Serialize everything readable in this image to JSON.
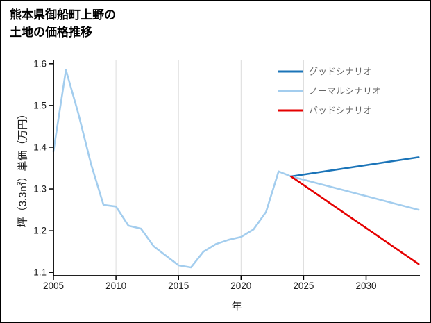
{
  "page": {
    "background": "#ffffff",
    "frame_color": "#000000"
  },
  "title": {
    "line1": "熊本県御船町上野の",
    "line2": "土地の価格推移"
  },
  "chart_data": {
    "type": "line",
    "title": "熊本県御船町上野の土地の価格推移",
    "xlabel": "年",
    "ylabel": "坪（3.3㎡）単価（万円）",
    "xlim": [
      2005,
      2034.3
    ],
    "ylim": [
      1.092,
      1.608
    ],
    "x_ticks": [
      {
        "value": 2005,
        "label": "2005"
      },
      {
        "value": 2010,
        "label": "2010"
      },
      {
        "value": 2015,
        "label": "2015"
      },
      {
        "value": 2020,
        "label": "2020"
      },
      {
        "value": 2025,
        "label": "2025"
      },
      {
        "value": 2030,
        "label": "2030"
      }
    ],
    "y_ticks": [
      {
        "value": 1.1,
        "label": "1.1"
      },
      {
        "value": 1.2,
        "label": "1.2"
      },
      {
        "value": 1.3,
        "label": "1.3"
      },
      {
        "value": 1.4,
        "label": "1.4"
      },
      {
        "value": 1.5,
        "label": "1.5"
      },
      {
        "value": 1.6,
        "label": "1.6"
      }
    ],
    "grid": "vertical-only",
    "legend_position": "top-right",
    "legend": [
      {
        "id": "good",
        "label": "グッドシナリオ",
        "color": "#1b74b8"
      },
      {
        "id": "normal",
        "label": "ノーマルシナリオ",
        "color": "#a3cdee"
      },
      {
        "id": "bad",
        "label": "バッドシナリオ",
        "color": "#e50000"
      }
    ],
    "series": [
      {
        "id": "history",
        "color": "#a3cdee",
        "x": [
          2005,
          2006,
          2007,
          2008,
          2009,
          2010,
          2011,
          2012,
          2013,
          2014,
          2015,
          2016,
          2017,
          2018,
          2019,
          2020,
          2021,
          2022,
          2023,
          2024
        ],
        "values": [
          1.39,
          1.585,
          1.48,
          1.36,
          1.262,
          1.258,
          1.212,
          1.205,
          1.163,
          1.14,
          1.117,
          1.112,
          1.15,
          1.168,
          1.178,
          1.185,
          1.203,
          1.245,
          1.342,
          1.33
        ]
      },
      {
        "id": "good",
        "color": "#1b74b8",
        "x": [
          2024,
          2034.2
        ],
        "values": [
          1.33,
          1.376
        ]
      },
      {
        "id": "normal",
        "color": "#a3cdee",
        "x": [
          2024,
          2034.2
        ],
        "values": [
          1.33,
          1.25
        ]
      },
      {
        "id": "bad",
        "color": "#e50000",
        "x": [
          2024,
          2034.2
        ],
        "values": [
          1.33,
          1.12
        ]
      }
    ]
  }
}
